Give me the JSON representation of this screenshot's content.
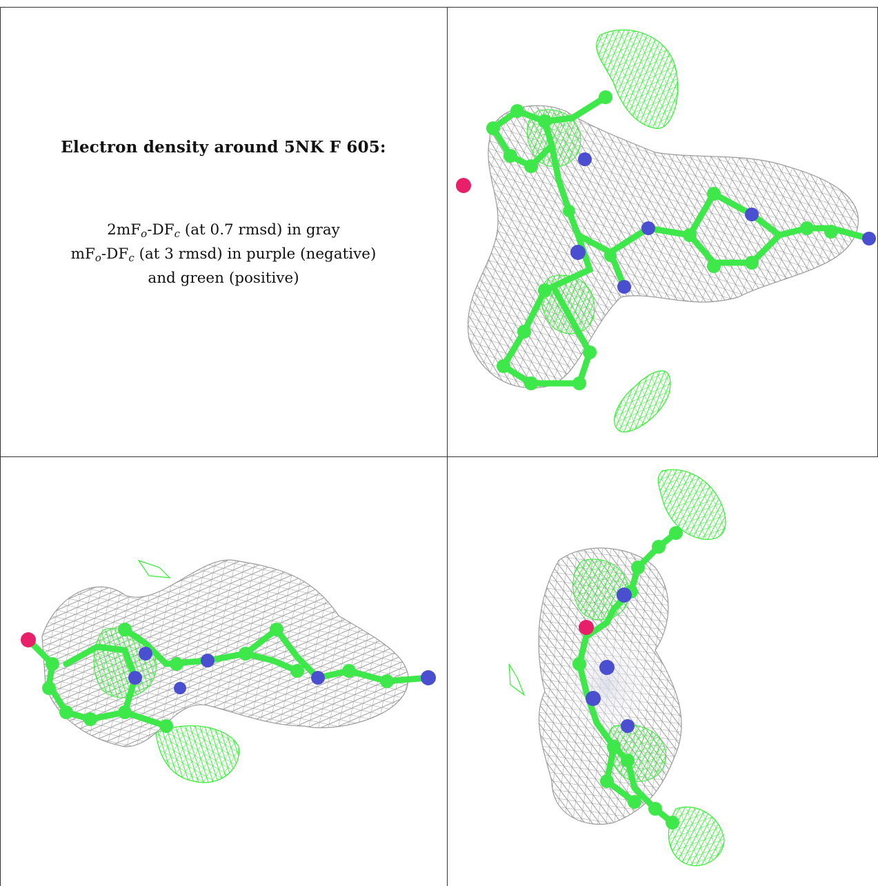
{
  "caption": {
    "title": "Electron density around 5NK F 605:",
    "line1": {
      "a": "2mF",
      "sub_o": "o",
      "b": "-DF",
      "sub_c": "c",
      "rest": " (at 0.7 rmsd) in gray"
    },
    "line2": {
      "a": "mF",
      "sub_o": "o",
      "b": "-DF",
      "sub_c": "c",
      "rest": " (at 3 rmsd) in purple (negative)"
    },
    "line3": "and green (positive)"
  },
  "colors": {
    "carbon": "#3ee84a",
    "nitrogen": "#4a4fd0",
    "oxygen": "#e8206a",
    "density_2fofc": "#9a9a9a",
    "density_fofc_positive": "#33ee33",
    "density_fofc_negative": "#9a2fd0",
    "border": "#333333"
  },
  "panels": [
    {
      "view": "top-right",
      "description_icon": "ligand-density-view"
    },
    {
      "view": "bottom-left",
      "description_icon": "ligand-density-view"
    },
    {
      "view": "bottom-right",
      "description_icon": "ligand-density-view"
    }
  ]
}
